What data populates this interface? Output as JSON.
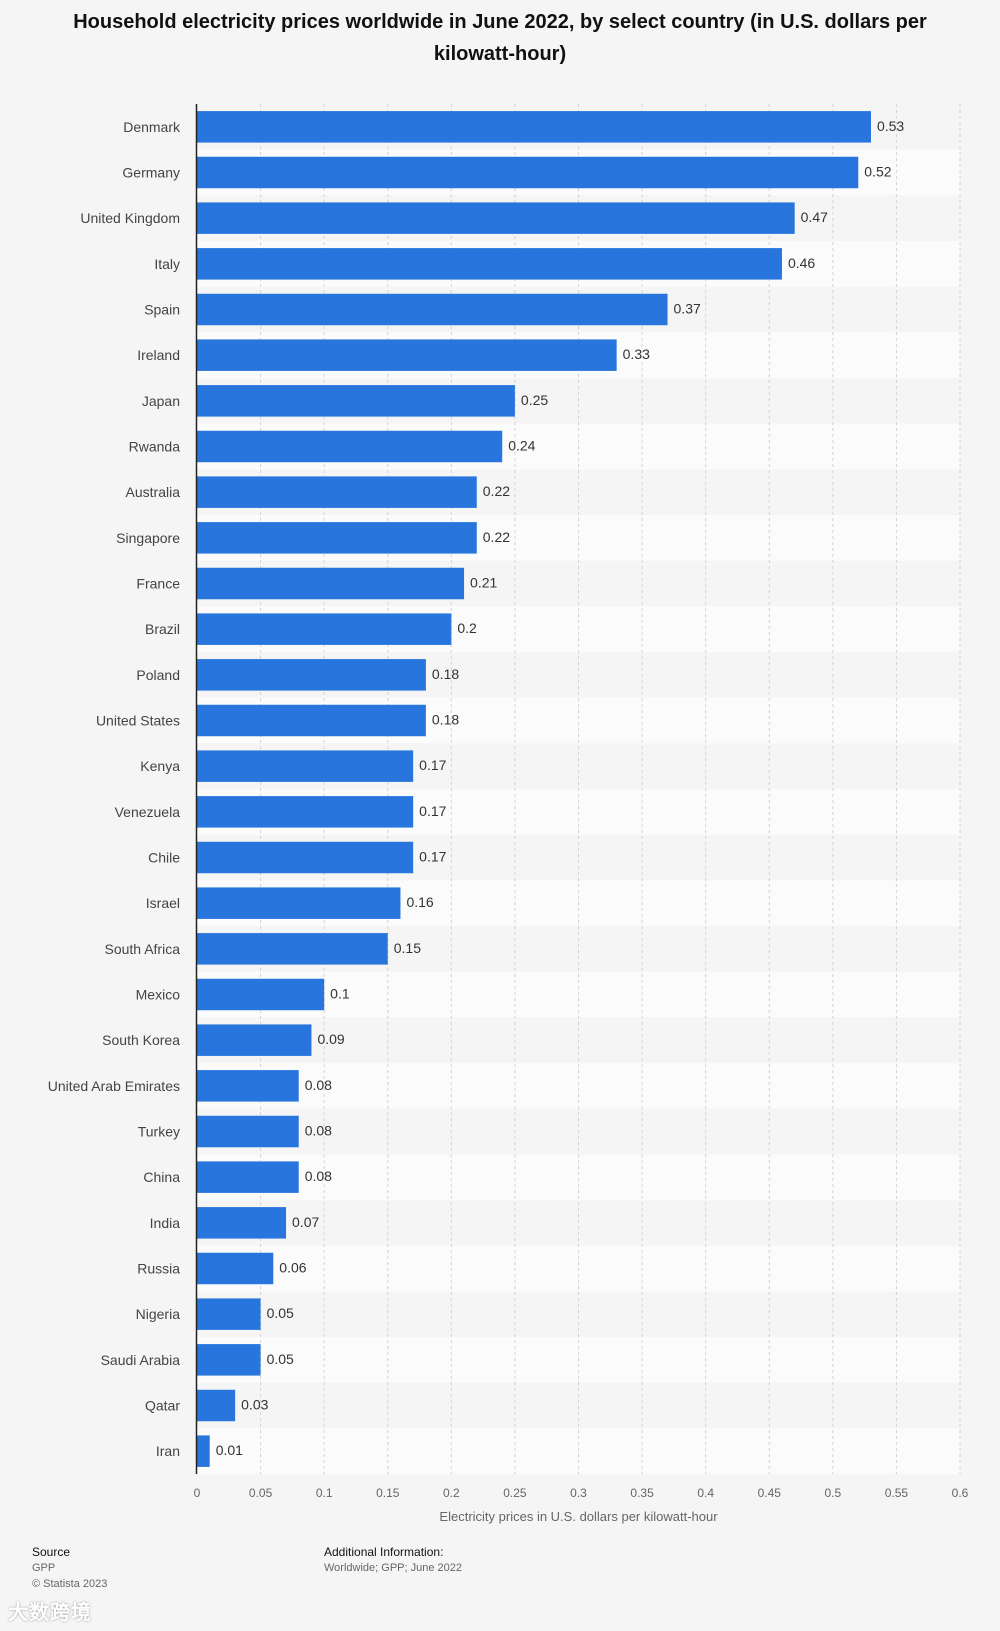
{
  "chart_data": {
    "type": "bar",
    "orientation": "horizontal",
    "title": "Household electricity prices worldwide in June 2022, by select country (in U.S. dollars per kilowatt-hour)",
    "xlabel": "Electricity prices in U.S. dollars per kilowatt-hour",
    "ylabel": "",
    "xlim": [
      0,
      0.6
    ],
    "ticks": [
      "0",
      "0.05",
      "0.1",
      "0.15",
      "0.2",
      "0.25",
      "0.3",
      "0.35",
      "0.4",
      "0.45",
      "0.5",
      "0.55",
      "0.6"
    ],
    "categories": [
      "Denmark",
      "Germany",
      "United Kingdom",
      "Italy",
      "Spain",
      "Ireland",
      "Japan",
      "Rwanda",
      "Australia",
      "Singapore",
      "France",
      "Brazil",
      "Poland",
      "United States",
      "Kenya",
      "Venezuela",
      "Chile",
      "Israel",
      "South Africa",
      "Mexico",
      "South Korea",
      "United Arab Emirates",
      "Turkey",
      "China",
      "India",
      "Russia",
      "Nigeria",
      "Saudi Arabia",
      "Qatar",
      "Iran"
    ],
    "values": [
      0.53,
      0.52,
      0.47,
      0.46,
      0.37,
      0.33,
      0.25,
      0.24,
      0.22,
      0.22,
      0.21,
      0.2,
      0.18,
      0.18,
      0.17,
      0.17,
      0.17,
      0.16,
      0.15,
      0.1,
      0.09,
      0.08,
      0.08,
      0.08,
      0.07,
      0.06,
      0.05,
      0.05,
      0.03,
      0.01
    ],
    "labels": [
      "0.53",
      "0.52",
      "0.47",
      "0.46",
      "0.37",
      "0.33",
      "0.25",
      "0.24",
      "0.22",
      "0.22",
      "0.21",
      "0.2",
      "0.18",
      "0.18",
      "0.17",
      "0.17",
      "0.17",
      "0.16",
      "0.15",
      "0.1",
      "0.09",
      "0.08",
      "0.08",
      "0.08",
      "0.07",
      "0.06",
      "0.05",
      "0.05",
      "0.03",
      "0.01"
    ],
    "grid": true,
    "bar_color": "#2876dd"
  },
  "footer": {
    "source_heading": "Source",
    "source_name": "GPP",
    "copyright": "© Statista 2023",
    "additional_heading": "Additional Information:",
    "additional_text": "Worldwide; GPP; June 2022"
  },
  "watermark": "大数跨境"
}
